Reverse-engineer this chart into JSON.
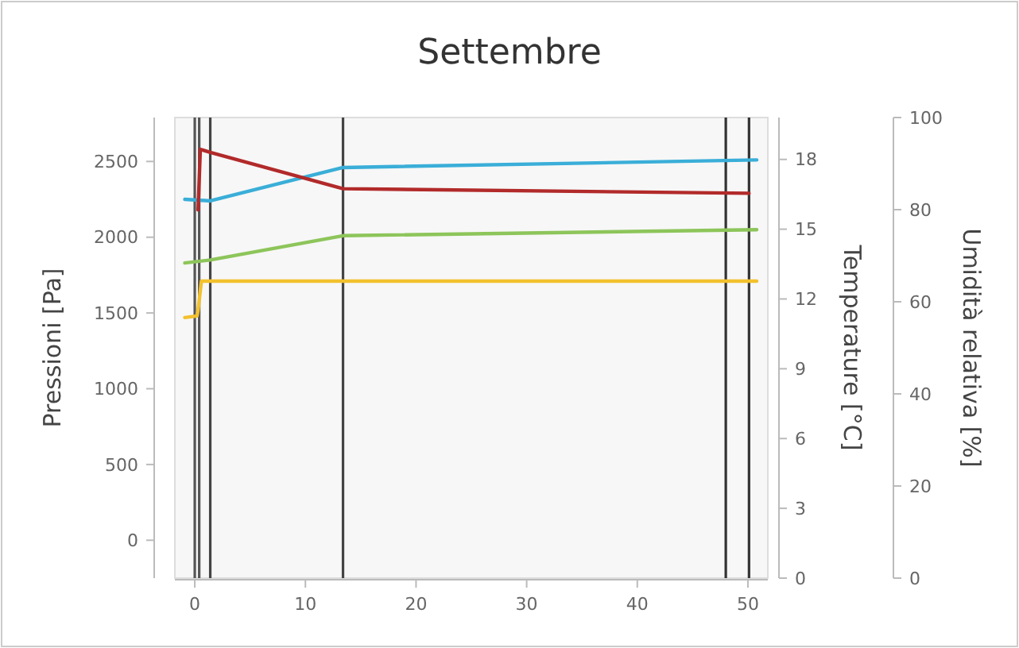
{
  "chart_data": {
    "type": "line",
    "title": "Settembre",
    "ylabel": "Pressioni [Pa]",
    "y2label": "Temperature [°C]",
    "y3label": "Umidità relativa [%]",
    "xlim": [
      -1.8,
      51.8
    ],
    "xticks": [
      0,
      10,
      20,
      30,
      40,
      50
    ],
    "ylim": [
      -250,
      2790
    ],
    "yticks": [
      0,
      500,
      1000,
      1500,
      2000,
      2500
    ],
    "y2lim": [
      0,
      19.8
    ],
    "y2ticks": [
      0,
      3,
      6,
      9,
      12,
      15,
      18
    ],
    "y3lim": [
      0,
      100
    ],
    "y3ticks": [
      0,
      20,
      40,
      60,
      80,
      100
    ],
    "grid": false,
    "line_style": "solid",
    "marker": "none",
    "ref_lines": [
      {
        "axis": "x",
        "value": 0,
        "color": "#555555"
      },
      {
        "axis": "x",
        "value": 0.4,
        "color": "#555555"
      },
      {
        "axis": "x",
        "value": 1.4,
        "color": "#444444"
      },
      {
        "axis": "x",
        "value": 13.4,
        "color": "#444444"
      },
      {
        "axis": "x",
        "value": 48,
        "color": "#333333"
      },
      {
        "axis": "x",
        "value": 50.1,
        "color": "#333333"
      }
    ],
    "series": [
      {
        "color": "#3aaed8",
        "x": [
          -0.9,
          1.4,
          13.4,
          50.8
        ],
        "values": [
          2250,
          2240,
          2460,
          2510
        ]
      },
      {
        "color": "#b22a2a",
        "x": [
          0.3,
          0.5,
          1.4,
          13.4,
          50.1
        ],
        "values": [
          2180,
          2580,
          2560,
          2320,
          2290
        ]
      },
      {
        "color": "#8dc55a",
        "x": [
          -0.9,
          1.4,
          13.4,
          50.8
        ],
        "values": [
          1830,
          1850,
          2010,
          2050
        ]
      },
      {
        "color": "#f2c12e",
        "x": [
          -0.9,
          0.2,
          0.3,
          0.6,
          50.8
        ],
        "values": [
          1470,
          1480,
          1520,
          1710,
          1710
        ]
      }
    ]
  }
}
